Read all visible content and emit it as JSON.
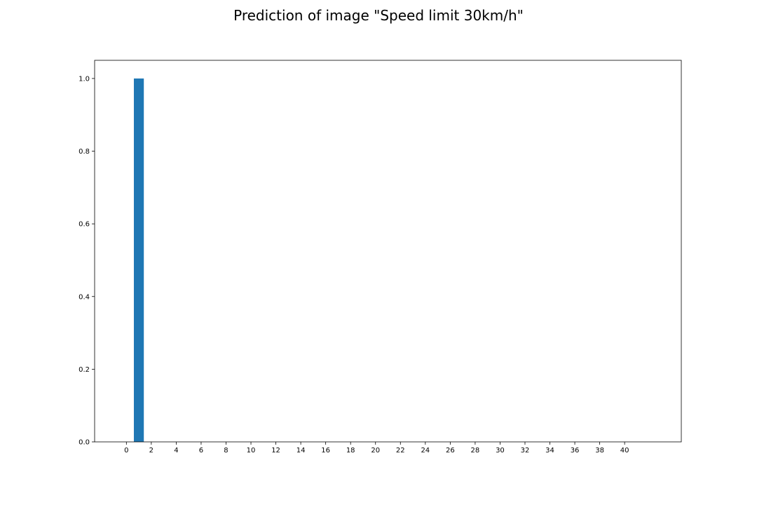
{
  "chart_data": {
    "type": "bar",
    "title": "Prediction of image \"Speed limit 30km/h\"",
    "xlabel": "",
    "ylabel": "",
    "x": [
      0,
      1,
      2,
      3,
      4,
      5,
      6,
      7,
      8,
      9,
      10,
      11,
      12,
      13,
      14,
      15,
      16,
      17,
      18,
      19,
      20,
      21,
      22,
      23,
      24,
      25,
      26,
      27,
      28,
      29,
      30,
      31,
      32,
      33,
      34,
      35,
      36,
      37,
      38,
      39,
      40,
      41,
      42
    ],
    "values": [
      0,
      1.0,
      0,
      0,
      0,
      0,
      0,
      0,
      0,
      0,
      0,
      0,
      0,
      0,
      0,
      0,
      0,
      0,
      0,
      0,
      0,
      0,
      0,
      0,
      0,
      0,
      0,
      0,
      0,
      0,
      0,
      0,
      0,
      0,
      0,
      0,
      0,
      0,
      0,
      0,
      0,
      0,
      0
    ],
    "xticks": [
      "0",
      "2",
      "4",
      "6",
      "8",
      "10",
      "12",
      "14",
      "16",
      "18",
      "20",
      "22",
      "24",
      "26",
      "28",
      "30",
      "32",
      "34",
      "36",
      "38",
      "40"
    ],
    "yticks": [
      "0.0",
      "0.2",
      "0.4",
      "0.6",
      "0.8",
      "1.0"
    ],
    "xlim": [
      -2.55,
      44.55
    ],
    "ylim": [
      0,
      1.05
    ],
    "grid": false,
    "bar_color": "#1f77b4"
  }
}
